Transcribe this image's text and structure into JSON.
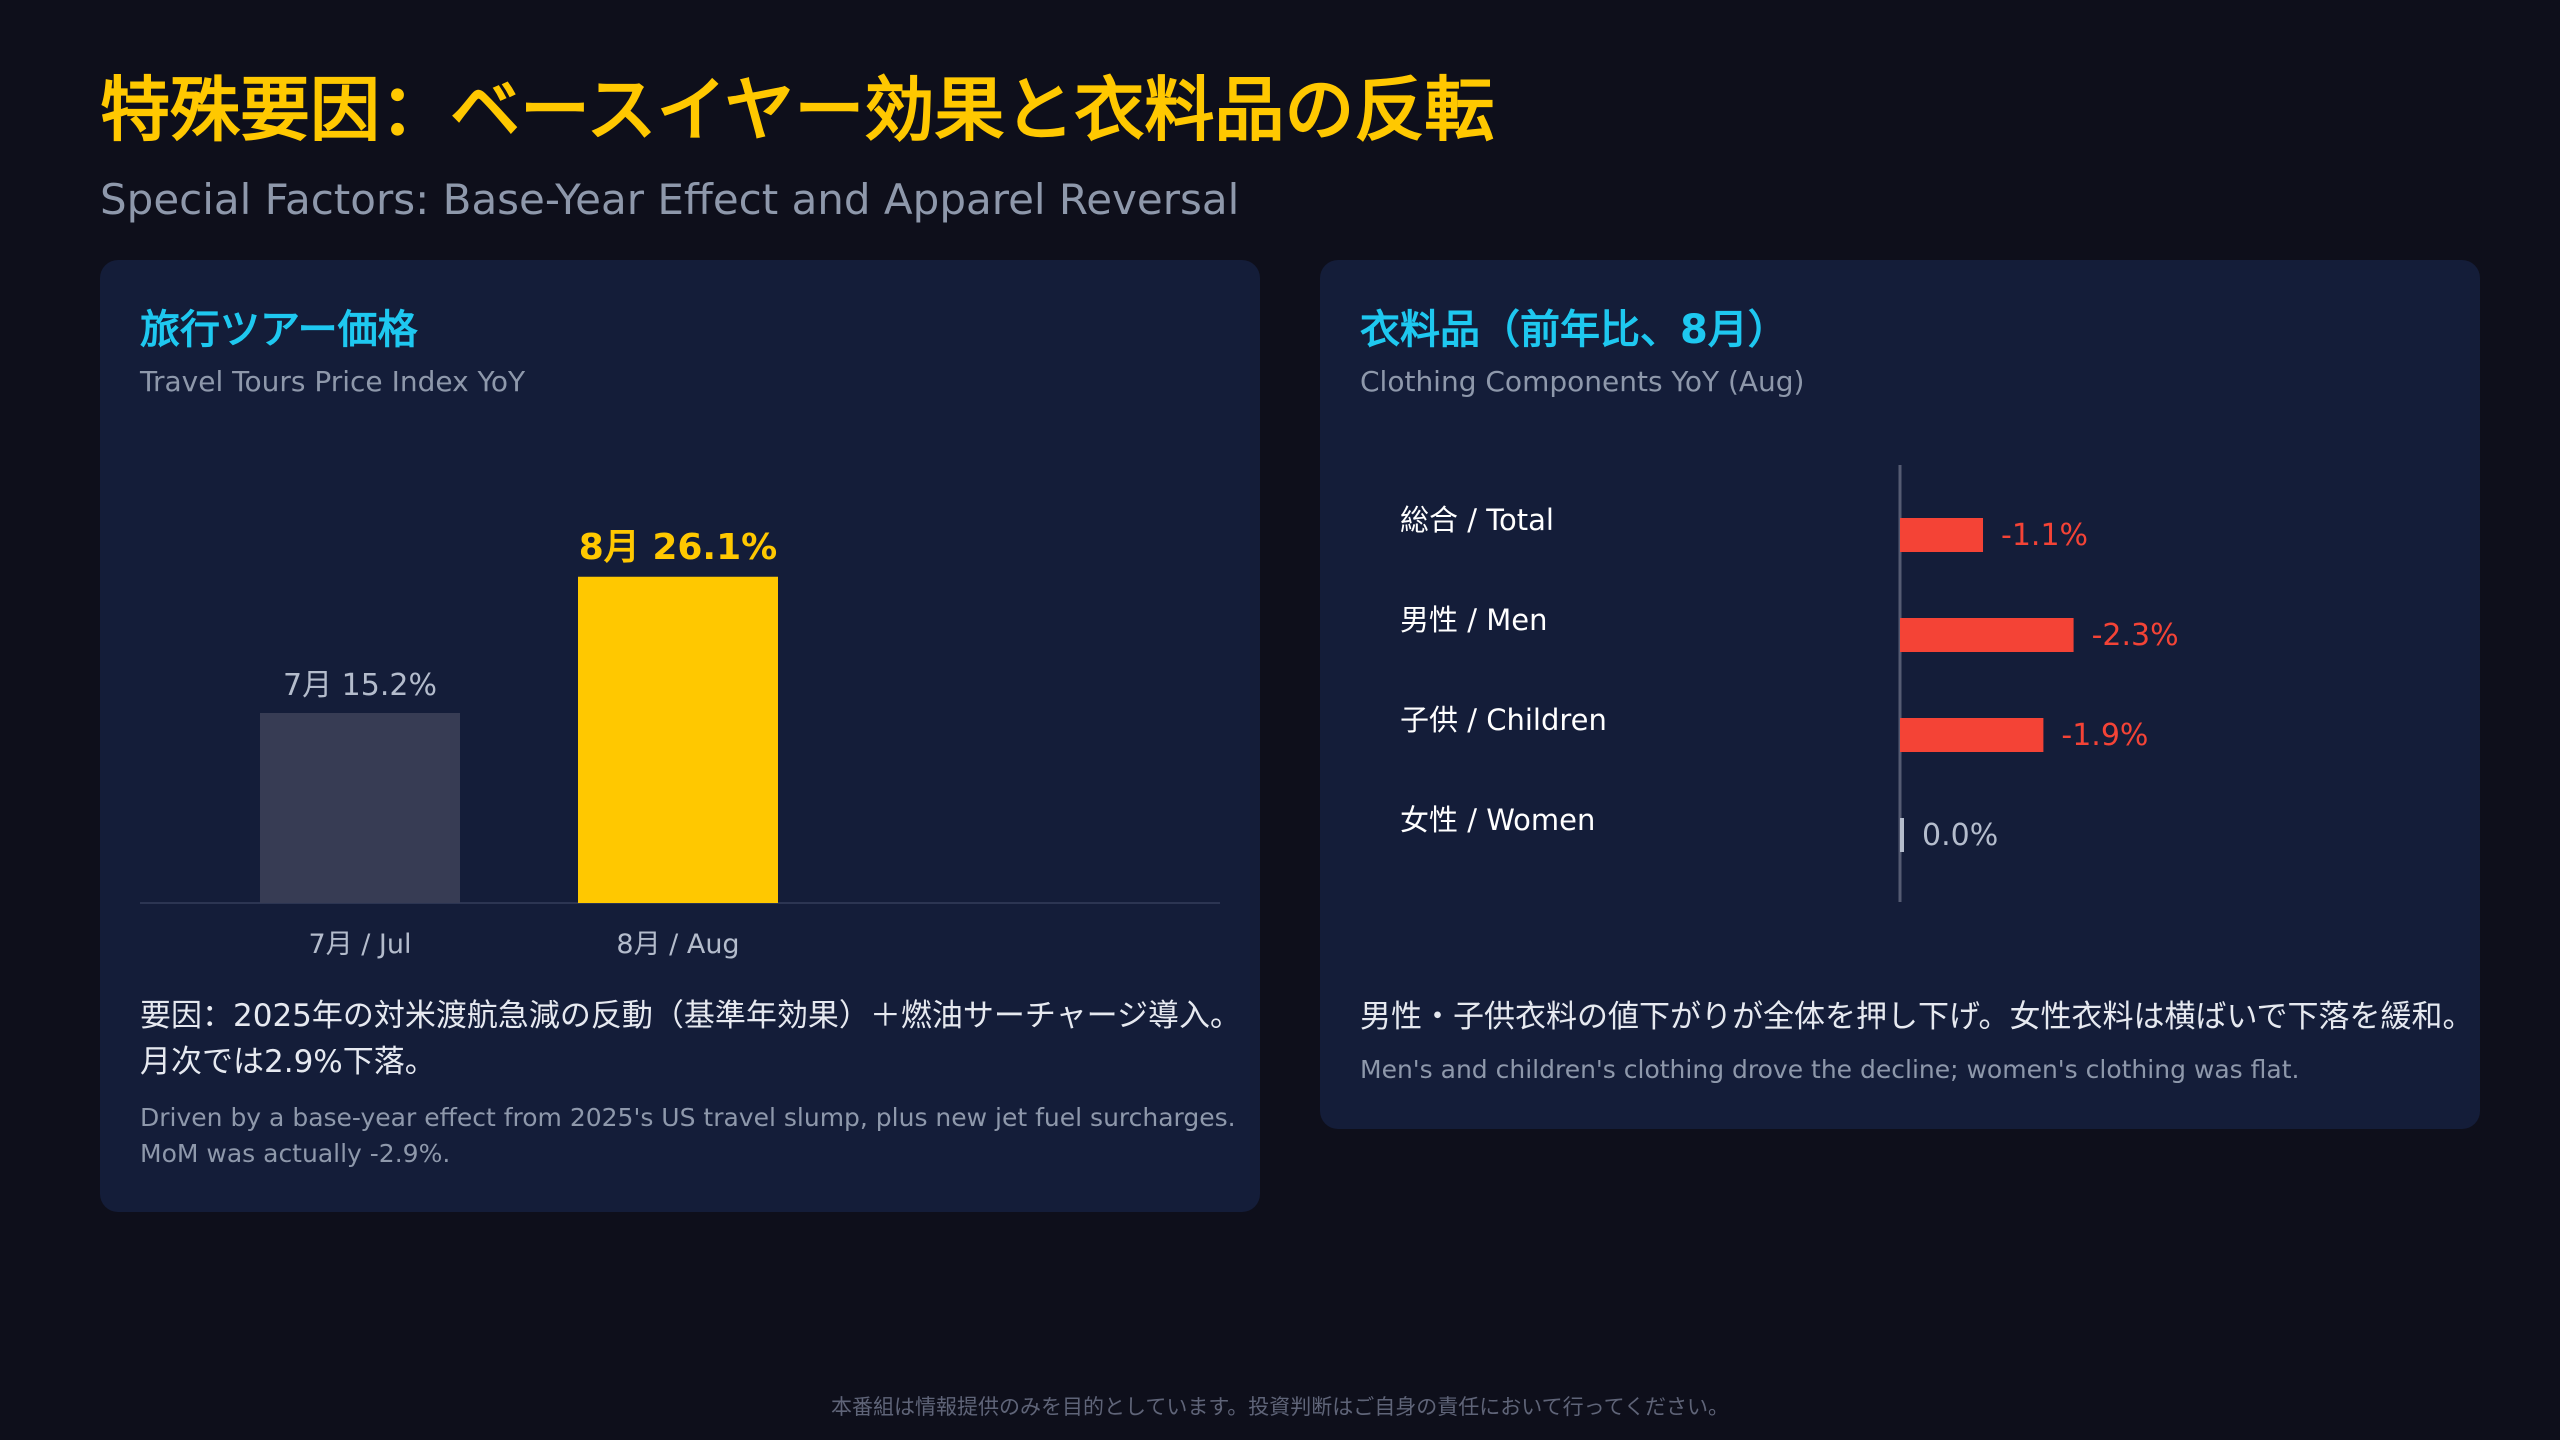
{
  "header": {
    "title": "特殊要因：ベースイヤー効果と衣料品の反転",
    "subtitle": "Special Factors: Base-Year Effect and Apparel Reversal"
  },
  "left_card": {
    "title": "旅行ツアー価格",
    "subtitle": "Travel Tours Price Index YoY",
    "note_jp_1": "要因：2025年の対米渡航急減の反動（基準年効果）＋燃油サーチャージ導入。",
    "note_jp_2": "月次では2.9%下落。",
    "note_en_1": "Driven by a base-year effect from 2025's US travel slump, plus new jet fuel surcharges.",
    "note_en_2": "MoM was actually -2.9%."
  },
  "right_card": {
    "title": "衣料品（前年比、8月）",
    "subtitle": "Clothing Components YoY (Aug)",
    "note_jp": "男性・子供衣料の値下がりが全体を押し下げ。女性衣料は横ばいで下落を緩和。",
    "note_en": "Men's and children's clothing drove the decline; women's clothing was flat."
  },
  "footer": "本番組は情報提供のみを目的としています。投資判断はご自身の責任において行ってください。",
  "chart_data": [
    {
      "type": "bar",
      "title": "旅行ツアー価格",
      "subtitle": "Travel Tours Price Index YoY",
      "categories": [
        "7月 / Jul",
        "8月 / Aug"
      ],
      "values": [
        15.2,
        26.1
      ],
      "data_labels": [
        "7月 15.2%",
        "8月 26.1%"
      ],
      "unit": "%",
      "ylim": [
        0,
        32
      ],
      "colors": [
        "#373c54",
        "#ffc800"
      ],
      "label_colors": [
        "#b4bccc",
        "#ffc800"
      ],
      "grid": false
    },
    {
      "type": "bar",
      "orientation": "horizontal",
      "title": "衣料品（前年比、8月）",
      "subtitle": "Clothing Components YoY (Aug)",
      "categories": [
        "総合 / Total",
        "男性 / Men",
        "子供 / Children",
        "女性 / Women"
      ],
      "values": [
        -1.1,
        -2.3,
        -1.9,
        0.0
      ],
      "data_labels": [
        "-1.1%",
        "-2.3%",
        "-1.9%",
        "0.0%"
      ],
      "unit": "%",
      "xlim": [
        0,
        -10.6
      ],
      "colors": [
        "#f44336",
        "#f44336",
        "#f44336",
        "#b4bccc"
      ],
      "grid": false
    }
  ]
}
